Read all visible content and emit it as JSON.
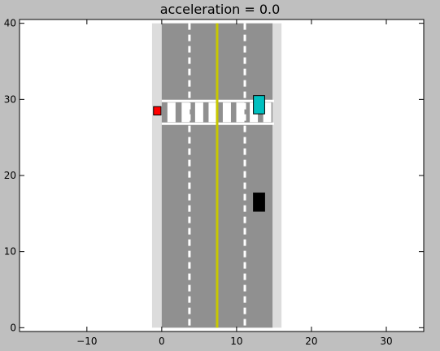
{
  "title": "acceleration = 0.0",
  "chart_data": {
    "type": "scatter",
    "xlim": [
      -19,
      35
    ],
    "ylim": [
      -0.5,
      40.5
    ],
    "xticks": [
      -10,
      0,
      10,
      20,
      30
    ],
    "yticks": [
      0,
      10,
      20,
      30,
      40
    ],
    "grid": false,
    "road": {
      "sidewalk_x": [
        -1.3,
        16.0
      ],
      "asphalt_x": [
        0,
        14.8
      ],
      "y": [
        0,
        40
      ],
      "dashed_lanes_x": [
        3.7,
        11.1
      ],
      "center_line_x": 7.4
    },
    "crosswalk": {
      "x": [
        0,
        15.0
      ],
      "y": [
        26.8,
        29.8
      ],
      "stripe_x": [
        1.3,
        3.2,
        5.0,
        6.8,
        8.7,
        10.5,
        12.3,
        14.1
      ]
    },
    "objects": [
      {
        "name": "pedestrian",
        "x": -0.6,
        "y": 28.5,
        "w": 1.0,
        "h": 1.1,
        "color": "#ff0000"
      },
      {
        "name": "car-cyan",
        "x": 13.0,
        "y": 29.3,
        "w": 1.5,
        "h": 2.4,
        "color": "#00c0c0"
      },
      {
        "name": "car-black",
        "x": 13.0,
        "y": 16.5,
        "w": 1.5,
        "h": 2.4,
        "color": "#000000"
      }
    ],
    "colors": {
      "sidewalk": "#dcdcdc",
      "asphalt": "#909090",
      "center_line": "#c8c800",
      "lane_dash": "#ffffff"
    }
  }
}
